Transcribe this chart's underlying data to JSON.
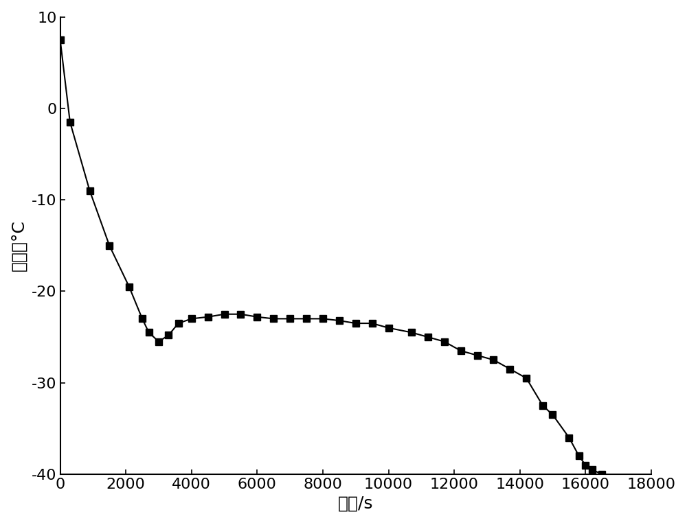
{
  "x": [
    0,
    300,
    900,
    1500,
    2100,
    2500,
    2700,
    3000,
    3300,
    3600,
    4000,
    4500,
    5000,
    5500,
    6000,
    6500,
    7000,
    7500,
    8000,
    8500,
    9000,
    9500,
    10000,
    10700,
    11200,
    11700,
    12200,
    12700,
    13200,
    13700,
    14200,
    14700,
    15000,
    15500,
    15800,
    16000,
    16200,
    16500
  ],
  "y": [
    7.5,
    -1.5,
    -9.0,
    -15.0,
    -19.5,
    -23.0,
    -24.5,
    -25.5,
    -24.8,
    -23.5,
    -23.0,
    -22.8,
    -22.5,
    -22.5,
    -22.8,
    -23.0,
    -23.0,
    -23.0,
    -23.0,
    -23.2,
    -23.5,
    -23.5,
    -24.0,
    -24.5,
    -25.0,
    -25.5,
    -26.5,
    -27.0,
    -27.5,
    -28.5,
    -29.5,
    -32.5,
    -33.5,
    -36.0,
    -38.0,
    -39.0,
    -39.5,
    -40.0
  ],
  "xlabel": "时间/s",
  "ylabel": "温度／°C",
  "xlim": [
    0,
    18000
  ],
  "ylim": [
    -40,
    10
  ],
  "xticks": [
    0,
    2000,
    4000,
    6000,
    8000,
    10000,
    12000,
    14000,
    16000,
    18000
  ],
  "yticks": [
    -40,
    -30,
    -20,
    -10,
    0,
    10
  ],
  "line_color": "#000000",
  "marker": "s",
  "marker_size": 7,
  "marker_color": "#000000",
  "background_color": "#ffffff",
  "xlabel_fontsize": 18,
  "ylabel_fontsize": 18,
  "tick_fontsize": 16,
  "linewidth": 1.5
}
